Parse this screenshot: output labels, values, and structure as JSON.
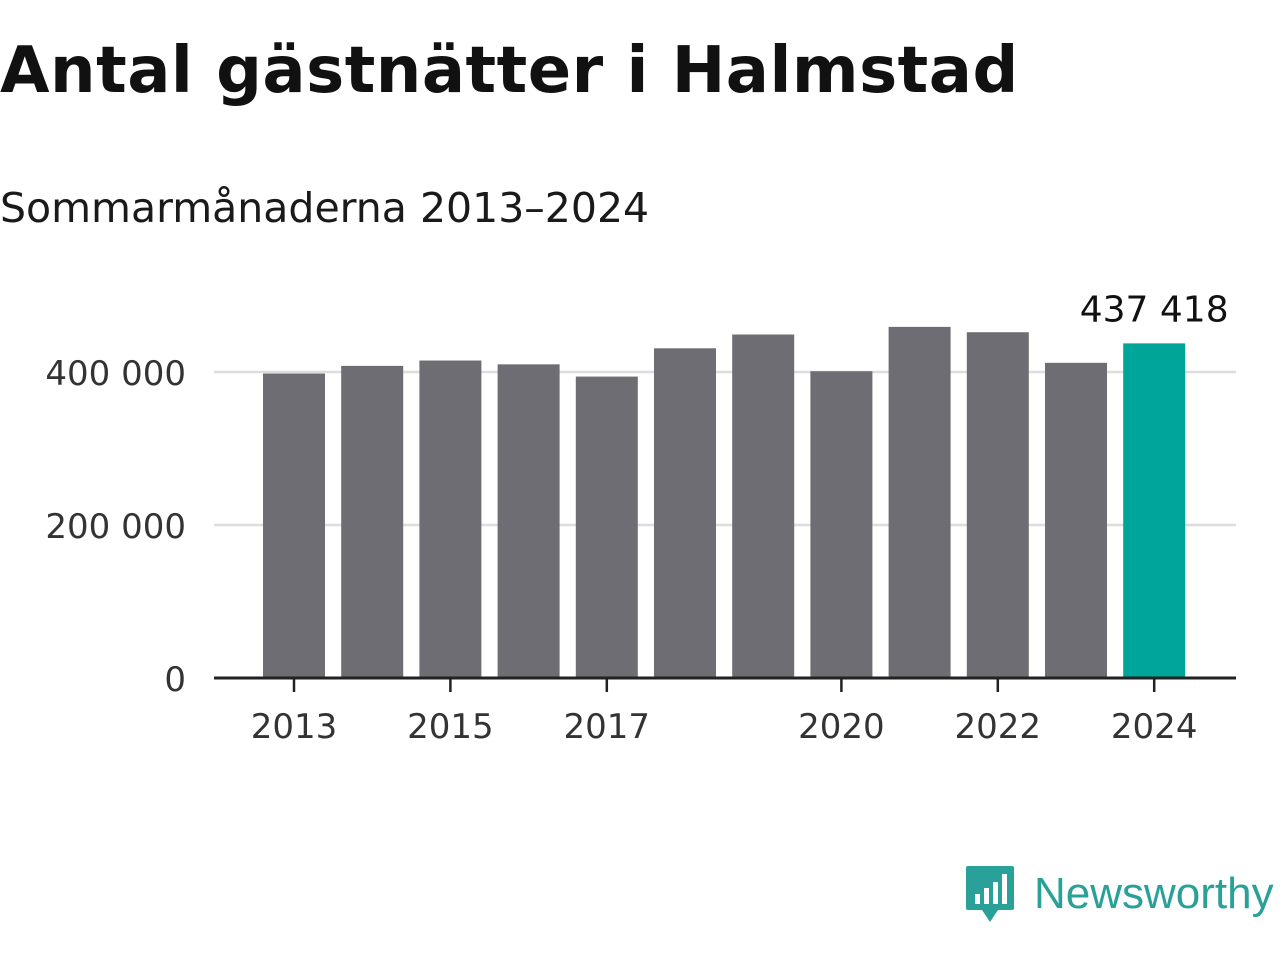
{
  "title": "Antal gästnätter i Halmstad",
  "subtitle": "Sommarmånaderna 2013–2024",
  "brand": {
    "name": "Newsworthy",
    "icon": "newsworthy-logo-icon",
    "color": "#2aa198"
  },
  "colors": {
    "bar": "#6e6d73",
    "highlight": "#00a59a",
    "grid": "#dddddd",
    "axis": "#222222",
    "text": "#333333"
  },
  "chart_data": {
    "type": "bar",
    "categories": [
      "2013",
      "2014",
      "2015",
      "2016",
      "2017",
      "2018",
      "2019",
      "2020",
      "2021",
      "2022",
      "2023",
      "2024"
    ],
    "values": [
      398000,
      408000,
      415000,
      410000,
      394000,
      431000,
      449000,
      401000,
      459000,
      452000,
      412000,
      437418
    ],
    "highlight_index": 11,
    "highlight_label": "437 418",
    "xtick_labels": [
      "2013",
      "",
      "2015",
      "",
      "2017",
      "",
      "",
      "2020",
      "",
      "2022",
      "",
      "2024"
    ],
    "yticks": [
      0,
      200000,
      400000
    ],
    "ytick_labels": [
      "0",
      "200 000",
      "400 000"
    ],
    "ylim": [
      0,
      460000
    ],
    "grid": true,
    "xlabel": "",
    "ylabel": ""
  }
}
